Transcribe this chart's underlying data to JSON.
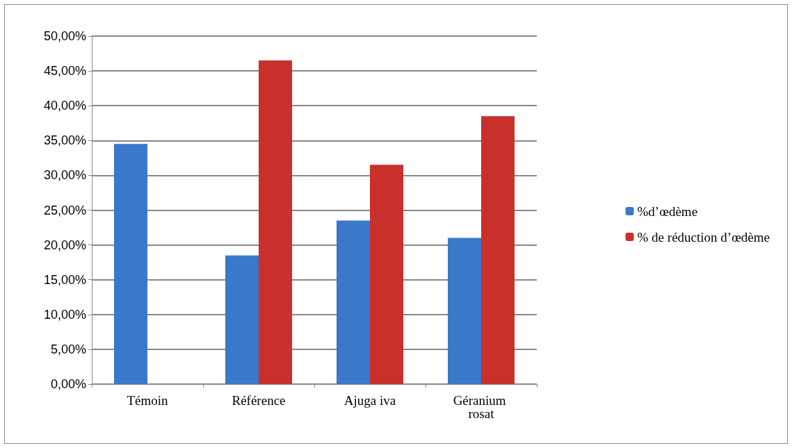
{
  "chart_data": {
    "type": "bar",
    "categories": [
      "Témoin",
      "Référence",
      "Ajuga iva",
      "Géranium rosat"
    ],
    "series": [
      {
        "name": "%d’œdème",
        "color": "#3a78c9",
        "values": [
          34.5,
          18.5,
          23.5,
          21
        ]
      },
      {
        "name": "% de réduction d’œdème",
        "color": "#c9302c",
        "values": [
          0,
          46.5,
          31.5,
          38.5
        ]
      }
    ],
    "ylim": [
      0,
      50
    ],
    "yticks": [
      {
        "value": 0,
        "label": "0,00%"
      },
      {
        "value": 5,
        "label": "5,00%"
      },
      {
        "value": 10,
        "label": "10,00%"
      },
      {
        "value": 15,
        "label": "15,00%"
      },
      {
        "value": 20,
        "label": "20,00%"
      },
      {
        "value": 25,
        "label": "25,00%"
      },
      {
        "value": 30,
        "label": "30,00%"
      },
      {
        "value": 35,
        "label": "35,00%"
      },
      {
        "value": 40,
        "label": "40,00%"
      },
      {
        "value": 45,
        "label": "45,00%"
      },
      {
        "value": 50,
        "label": "50,00%"
      }
    ],
    "grid": "y",
    "legend": "right"
  }
}
